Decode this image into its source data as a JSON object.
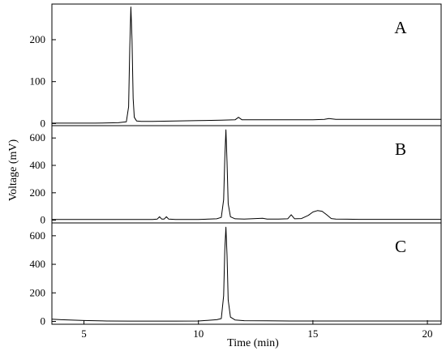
{
  "chart_data": {
    "type": "line",
    "xlabel": "Time (min)",
    "ylabel": "Voltage (mV)",
    "xlim": [
      3.6,
      20.6
    ],
    "x_ticks": [
      5,
      10,
      15,
      20
    ],
    "x_tick_labels": [
      "5",
      "10",
      "15",
      "20"
    ],
    "grid": false,
    "panels": [
      {
        "label": "A",
        "ylim": [
          -5,
          285
        ],
        "y_ticks": [
          0,
          100,
          200
        ],
        "y_tick_labels": [
          "0",
          "100",
          "200"
        ],
        "series": {
          "color": "#000000",
          "x": [
            3.6,
            4.5,
            5.5,
            6.5,
            6.85,
            6.95,
            7.0,
            7.05,
            7.1,
            7.15,
            7.2,
            7.3,
            7.5,
            8.0,
            9.0,
            10.0,
            11.0,
            11.6,
            11.75,
            11.9,
            12.5,
            13.0,
            14.0,
            15.0,
            15.5,
            15.7,
            16.0,
            17.0,
            18.0,
            19.0,
            20.0,
            20.6
          ],
          "y": [
            1,
            1,
            1,
            2,
            4,
            40,
            180,
            278,
            200,
            60,
            15,
            6,
            5,
            5,
            6,
            7,
            8,
            9,
            15,
            9,
            9,
            9,
            9,
            9,
            10,
            12,
            10,
            10,
            10,
            10,
            10,
            10
          ]
        }
      },
      {
        "label": "B",
        "ylim": [
          -20,
          690
        ],
        "y_ticks": [
          0,
          200,
          400,
          600
        ],
        "y_tick_labels": [
          "0",
          "200",
          "400",
          "600"
        ],
        "series": {
          "color": "#000000",
          "x": [
            3.6,
            5.0,
            7.0,
            8.0,
            8.2,
            8.3,
            8.4,
            8.5,
            8.6,
            8.7,
            9.0,
            10.0,
            10.8,
            11.0,
            11.1,
            11.15,
            11.2,
            11.25,
            11.3,
            11.4,
            11.6,
            12.0,
            12.8,
            13.0,
            13.5,
            13.9,
            14.05,
            14.2,
            14.5,
            14.8,
            15.0,
            15.2,
            15.4,
            15.6,
            15.8,
            16.0,
            16.5,
            17.0,
            18.0,
            19.0,
            20.0,
            20.6
          ],
          "y": [
            5,
            5,
            5,
            5,
            8,
            25,
            8,
            8,
            25,
            8,
            5,
            5,
            10,
            20,
            150,
            450,
            660,
            420,
            120,
            25,
            10,
            8,
            14,
            8,
            8,
            10,
            40,
            10,
            12,
            35,
            60,
            70,
            65,
            40,
            12,
            8,
            7,
            6,
            6,
            6,
            6,
            6
          ]
        }
      },
      {
        "label": "C",
        "ylim": [
          -20,
          690
        ],
        "y_ticks": [
          0,
          200,
          400,
          600
        ],
        "y_tick_labels": [
          "0",
          "200",
          "400",
          "600"
        ],
        "series": {
          "color": "#000000",
          "x": [
            3.6,
            4.0,
            5.0,
            6.0,
            7.0,
            8.0,
            9.0,
            10.0,
            10.8,
            11.0,
            11.1,
            11.15,
            11.2,
            11.25,
            11.3,
            11.4,
            11.6,
            12.0,
            13.0,
            14.0,
            15.0,
            16.0,
            17.0,
            18.0,
            19.0,
            20.0,
            20.6
          ],
          "y": [
            15,
            12,
            6,
            3,
            2,
            2,
            2,
            3,
            12,
            20,
            180,
            500,
            660,
            460,
            150,
            30,
            10,
            5,
            4,
            3,
            3,
            3,
            3,
            3,
            3,
            3,
            3
          ]
        }
      }
    ]
  }
}
